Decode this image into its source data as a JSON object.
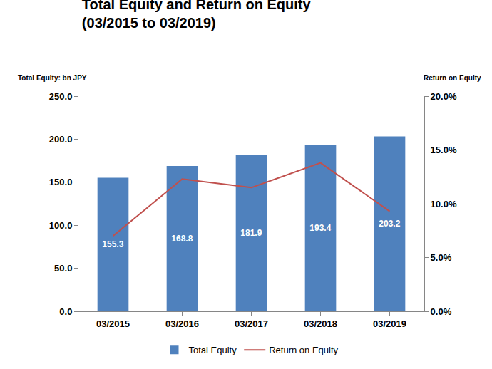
{
  "chart_data": {
    "type": "bar",
    "title": "Total Equity and Return on Equity",
    "subtitle": "(03/2015 to 03/2019)",
    "y_label": "Total Equity: bn JPY",
    "y2_label": "Return on Equity",
    "categories": [
      "03/2015",
      "03/2016",
      "03/2017",
      "03/2018",
      "03/2019"
    ],
    "series": [
      {
        "name": "Total Equity",
        "type": "bar",
        "color": "#4f81bd",
        "values": [
          155.3,
          168.8,
          181.9,
          193.4,
          203.2
        ],
        "data_labels": true
      },
      {
        "name": "Return on Equity",
        "type": "line",
        "color": "#c0504d",
        "axis": "y2",
        "values": [
          7.0,
          12.3,
          11.5,
          13.8,
          9.3
        ]
      }
    ],
    "ylim": [
      0,
      250
    ],
    "yticks": [
      {
        "value": 0,
        "label": "0.0"
      },
      {
        "value": 50,
        "label": "50.0"
      },
      {
        "value": 100,
        "label": "100.0"
      },
      {
        "value": 150,
        "label": "150.0"
      },
      {
        "value": 200,
        "label": "200.0"
      },
      {
        "value": 250,
        "label": "250.0"
      }
    ],
    "y2lim": [
      0,
      20
    ],
    "y2ticks": [
      {
        "value": 0,
        "label": "0.0%"
      },
      {
        "value": 5,
        "label": "5.0%"
      },
      {
        "value": 10,
        "label": "10.0%"
      },
      {
        "value": 15,
        "label": "15.0%"
      },
      {
        "value": 20,
        "label": "20.0%"
      }
    ],
    "grid": false,
    "legend": "bottom"
  }
}
